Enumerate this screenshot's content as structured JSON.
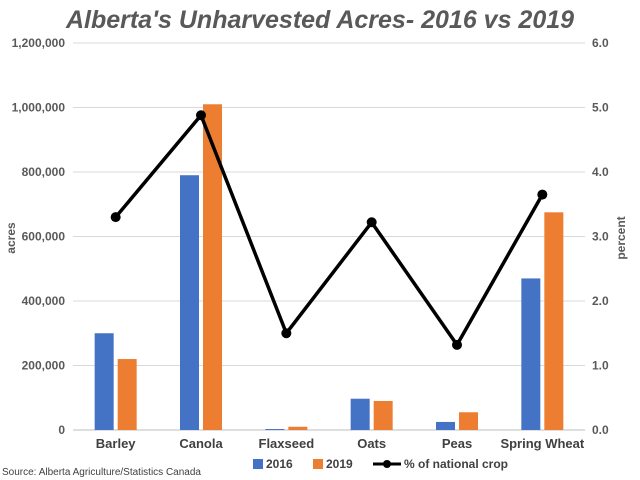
{
  "chart_data": {
    "type": "bar",
    "title": "Alberta's Unharvested Acres- 2016 vs 2019",
    "source": "Source: Alberta Agriculture/Statistics Canada",
    "categories": [
      "Barley",
      "Canola",
      "Flaxseed",
      "Oats",
      "Peas",
      "Spring Wheat"
    ],
    "series": [
      {
        "name": "2016",
        "type": "bar",
        "axis": "left",
        "color": "#4472C4",
        "values": [
          300000,
          790000,
          3000,
          97000,
          25000,
          470000
        ]
      },
      {
        "name": "2019",
        "type": "bar",
        "axis": "left",
        "color": "#ED7D31",
        "values": [
          220000,
          1010000,
          10000,
          90000,
          55000,
          675000
        ]
      },
      {
        "name": "% of national crop",
        "type": "line",
        "axis": "right",
        "color": "#000000",
        "values": [
          3.3,
          4.88,
          1.5,
          3.22,
          1.32,
          3.65
        ]
      }
    ],
    "ylabel": "acres",
    "y2label": "percent",
    "ylim": [
      0,
      1200000
    ],
    "y2lim": [
      0,
      6
    ],
    "yticks": [
      "0",
      "200,000",
      "400,000",
      "600,000",
      "800,000",
      "1,000,000",
      "1,200,000"
    ],
    "y2ticks": [
      "0.0",
      "1.0",
      "2.0",
      "3.0",
      "4.0",
      "5.0",
      "6.0"
    ],
    "grid": true,
    "legend_position": "bottom"
  }
}
